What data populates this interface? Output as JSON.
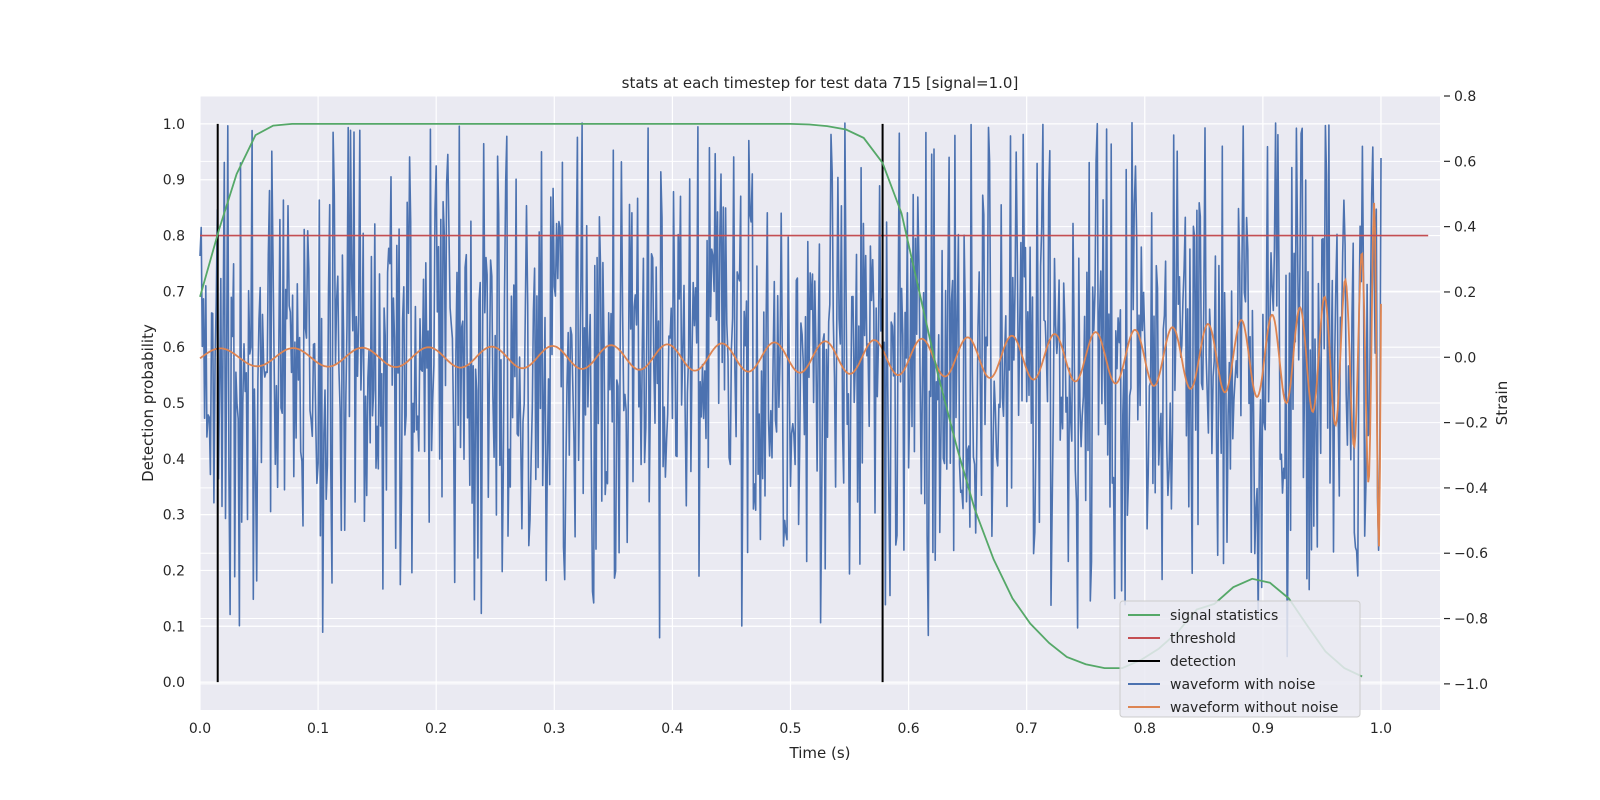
{
  "chart_data": {
    "type": "line",
    "title": "stats at each timestep for test data 715 [signal=1.0]",
    "xlabel": "Time (s)",
    "ylabel": "Detection probability",
    "y2label": "Strain",
    "xlim": [
      0.0,
      1.05
    ],
    "ylim": [
      -0.05,
      1.05
    ],
    "y2lim": [
      -1.08,
      0.8
    ],
    "xticks": [
      "0.0",
      "0.1",
      "0.2",
      "0.3",
      "0.4",
      "0.5",
      "0.6",
      "0.7",
      "0.8",
      "0.9",
      "1.0"
    ],
    "yticks": [
      "0.0",
      "0.1",
      "0.2",
      "0.3",
      "0.4",
      "0.5",
      "0.6",
      "0.7",
      "0.8",
      "0.9",
      "1.0"
    ],
    "y2ticks": [
      "−1.0",
      "−0.8",
      "−0.6",
      "−0.4",
      "−0.2",
      "0.0",
      "0.2",
      "0.4",
      "0.6",
      "0.8"
    ],
    "grid": true,
    "legend_position": "lower-right",
    "colors": {
      "signal": "#55a868",
      "threshold": "#c44e52",
      "detection": "#000000",
      "noisy": "#4c72b0",
      "clean": "#dd8452",
      "plot_bg": "#eaeaf2",
      "grid": "#ffffff"
    },
    "series": [
      {
        "name": "signal statistics",
        "axis": "left",
        "x": [
          0.0,
          0.016,
          0.031,
          0.047,
          0.062,
          0.078,
          0.094,
          0.2,
          0.4,
          0.5,
          0.516,
          0.531,
          0.547,
          0.562,
          0.578,
          0.594,
          0.609,
          0.625,
          0.641,
          0.656,
          0.672,
          0.688,
          0.703,
          0.719,
          0.734,
          0.75,
          0.766,
          0.781,
          0.797,
          0.812,
          0.828,
          0.844,
          0.859,
          0.875,
          0.891,
          0.906,
          0.922,
          0.938,
          0.953,
          0.969,
          0.984
        ],
        "y": [
          0.69,
          0.81,
          0.91,
          0.98,
          0.997,
          1.0,
          1.0,
          1.0,
          1.0,
          1.0,
          0.999,
          0.996,
          0.99,
          0.975,
          0.93,
          0.84,
          0.7,
          0.55,
          0.42,
          0.31,
          0.22,
          0.15,
          0.105,
          0.07,
          0.045,
          0.032,
          0.025,
          0.025,
          0.04,
          0.06,
          0.09,
          0.13,
          0.14,
          0.17,
          0.185,
          0.178,
          0.15,
          0.1,
          0.055,
          0.025,
          0.01
        ]
      },
      {
        "name": "threshold",
        "axis": "left",
        "x": [
          0.0,
          1.04
        ],
        "y": [
          0.8,
          0.8
        ]
      },
      {
        "name": "detection",
        "axis": "left",
        "x": [
          0.015,
          0.578
        ],
        "y": [
          0.0,
          1.0
        ]
      },
      {
        "name": "waveform with noise",
        "axis": "right"
      },
      {
        "name": "waveform without noise",
        "axis": "right"
      }
    ]
  }
}
